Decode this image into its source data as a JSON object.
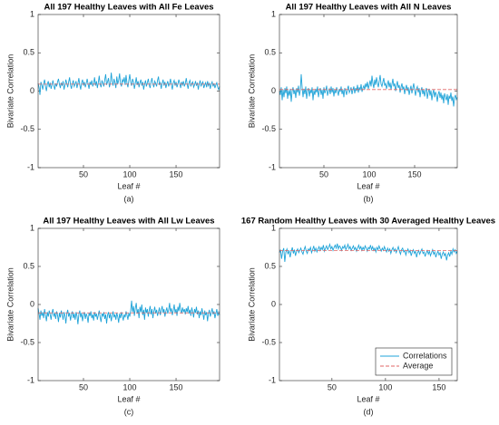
{
  "chart_data": [
    {
      "type": "line",
      "title": "All 197 Healthy Leaves with All Fe Leaves",
      "xlabel": "Leaf #",
      "ylabel": "Bivariate Correlation",
      "caption": "(a)",
      "xlim": [
        1,
        197
      ],
      "xticks": [
        50,
        100,
        150
      ],
      "ylim": [
        -1,
        1
      ],
      "yticks": [
        -1,
        -0.5,
        0,
        0.5,
        1
      ],
      "series": [
        {
          "color": "#1fa3d8",
          "values": [
            0.1,
            0.05,
            -0.05,
            0.12,
            0.08,
            0.02,
            0.1,
            0.15,
            0.06,
            0.0,
            0.09,
            0.13,
            0.05,
            0.11,
            0.03,
            0.08,
            0.14,
            0.07,
            0.02,
            0.1,
            0.06,
            0.12,
            0.16,
            0.09,
            0.04,
            0.11,
            0.07,
            0.13,
            0.02,
            0.08,
            0.15,
            0.1,
            0.05,
            0.12,
            0.18,
            0.08,
            0.03,
            0.1,
            0.14,
            0.06,
            0.09,
            0.13,
            0.04,
            0.1,
            0.17,
            0.08,
            0.02,
            0.11,
            0.15,
            0.07,
            0.12,
            0.05,
            0.1,
            0.16,
            0.09,
            0.03,
            0.12,
            0.08,
            0.14,
            0.06,
            0.1,
            0.18,
            0.07,
            0.13,
            0.04,
            0.11,
            0.2,
            0.09,
            0.05,
            0.14,
            0.1,
            0.06,
            0.15,
            0.22,
            0.08,
            0.12,
            0.17,
            0.05,
            0.1,
            0.24,
            0.13,
            0.07,
            0.16,
            0.11,
            0.04,
            0.19,
            0.09,
            0.14,
            0.23,
            0.1,
            0.06,
            0.15,
            0.12,
            0.18,
            0.08,
            0.21,
            0.1,
            0.05,
            0.14,
            0.22,
            0.11,
            0.07,
            0.16,
            0.12,
            0.03,
            0.1,
            0.18,
            0.08,
            0.13,
            0.05,
            0.11,
            0.15,
            0.07,
            0.12,
            0.02,
            0.09,
            0.14,
            0.06,
            0.11,
            0.16,
            0.08,
            0.04,
            0.12,
            0.17,
            0.09,
            0.05,
            0.13,
            0.1,
            0.06,
            0.14,
            0.19,
            0.08,
            0.11,
            0.03,
            0.1,
            0.15,
            0.07,
            0.12,
            0.04,
            0.09,
            0.13,
            0.06,
            0.1,
            0.16,
            0.08,
            0.02,
            0.11,
            0.14,
            0.07,
            0.12,
            0.05,
            0.09,
            0.15,
            0.1,
            0.04,
            0.12,
            0.08,
            0.13,
            0.06,
            0.1,
            0.17,
            0.09,
            0.03,
            0.11,
            0.14,
            0.06,
            0.1,
            0.12,
            0.05,
            0.08,
            0.13,
            0.07,
            0.11,
            0.02,
            0.09,
            0.14,
            0.06,
            0.1,
            0.12,
            0.04,
            0.08,
            0.11,
            0.05,
            0.13,
            0.07,
            0.1,
            0.03,
            0.09,
            0.12,
            0.06,
            0.1,
            0.04,
            0.08,
            0.11,
            0.05,
            0.02,
            0.06
          ]
        },
        {
          "color": "#e06666",
          "dash": true,
          "x": [
            1,
            197
          ],
          "values": [
            0.09,
            0.09
          ]
        }
      ]
    },
    {
      "type": "line",
      "title": "All 197 Healthy Leaves with All N Leaves",
      "xlabel": "Leaf #",
      "ylabel": "Bivariate Correlation",
      "caption": "(b)",
      "xlim": [
        1,
        197
      ],
      "xticks": [
        50,
        100,
        150
      ],
      "ylim": [
        -1,
        1
      ],
      "yticks": [
        -1,
        -0.5,
        0,
        0.5,
        1
      ],
      "series": [
        {
          "color": "#1fa3d8",
          "values": [
            0.0,
            -0.05,
            0.05,
            -0.12,
            0.02,
            -0.08,
            0.04,
            -0.03,
            0.06,
            -0.1,
            0.01,
            -0.06,
            0.03,
            -0.14,
            0.0,
            0.05,
            -0.04,
            0.02,
            -0.09,
            0.04,
            -0.02,
            0.07,
            -0.06,
            0.01,
            0.22,
            0.05,
            -0.08,
            0.03,
            -0.04,
            0.06,
            -0.1,
            0.0,
            0.04,
            -0.07,
            0.02,
            -0.03,
            0.05,
            -0.12,
            0.01,
            -0.05,
            0.03,
            -0.02,
            0.06,
            -0.08,
            0.0,
            0.04,
            -0.05,
            0.02,
            -0.1,
            0.05,
            -0.03,
            0.01,
            0.07,
            -0.06,
            0.0,
            0.03,
            -0.04,
            0.06,
            -0.02,
            0.04,
            -0.07,
            0.02,
            -0.03,
            0.05,
            0.0,
            -0.06,
            0.03,
            -0.01,
            0.06,
            -0.04,
            0.02,
            -0.08,
            0.04,
            0.0,
            -0.05,
            0.03,
            0.07,
            -0.02,
            0.01,
            0.05,
            -0.04,
            0.02,
            0.06,
            -0.03,
            0.04,
            0.0,
            0.08,
            -0.02,
            0.05,
            0.01,
            0.09,
            -0.01,
            0.04,
            0.07,
            0.02,
            0.1,
            0.05,
            0.12,
            0.03,
            0.08,
            0.14,
            0.06,
            0.2,
            0.1,
            0.04,
            0.15,
            0.08,
            0.18,
            0.11,
            0.05,
            0.13,
            0.21,
            0.09,
            0.06,
            0.12,
            0.17,
            0.07,
            0.1,
            0.03,
            0.08,
            0.14,
            0.05,
            0.11,
            0.02,
            0.09,
            0.16,
            0.06,
            0.1,
            0.0,
            0.07,
            0.13,
            0.04,
            0.08,
            -0.02,
            0.05,
            0.1,
            0.02,
            0.06,
            -0.04,
            0.03,
            0.08,
            0.0,
            0.05,
            -0.05,
            0.02,
            0.07,
            -0.03,
            0.04,
            0.1,
            0.01,
            -0.06,
            0.03,
            0.06,
            -0.02,
            0.04,
            -0.08,
            0.01,
            0.05,
            -0.04,
            0.02,
            -0.07,
            0.0,
            0.04,
            -0.1,
            -0.02,
            0.03,
            -0.06,
            0.01,
            -0.12,
            -0.03,
            0.02,
            -0.08,
            -0.01,
            -0.05,
            -0.14,
            -0.04,
            0.0,
            -0.09,
            -0.02,
            -0.11,
            -0.05,
            -0.16,
            -0.03,
            -0.08,
            -0.12,
            -0.04,
            -0.18,
            -0.06,
            -0.1,
            -0.02,
            -0.13,
            -0.07,
            -0.2,
            -0.09,
            -0.05,
            -0.11,
            -0.08
          ]
        },
        {
          "color": "#e06666",
          "dash": true,
          "x": [
            1,
            197
          ],
          "values": [
            0.02,
            0.02
          ]
        }
      ]
    },
    {
      "type": "line",
      "title": "All 197 Healthy Leaves with All Lw Leaves",
      "xlabel": "Leaf #",
      "ylabel": "Bivariate Correlation",
      "caption": "(c)",
      "xlim": [
        1,
        197
      ],
      "xticks": [
        50,
        100,
        150
      ],
      "ylim": [
        -1,
        1
      ],
      "yticks": [
        -1,
        -0.5,
        0,
        0.5,
        1
      ],
      "series": [
        {
          "color": "#1fa3d8",
          "values": [
            -0.05,
            -0.12,
            -0.2,
            -0.08,
            -0.15,
            -0.1,
            -0.18,
            -0.06,
            -0.14,
            -0.22,
            -0.1,
            -0.16,
            -0.08,
            -0.13,
            -0.2,
            -0.11,
            -0.06,
            -0.15,
            -0.12,
            -0.19,
            -0.09,
            -0.14,
            -0.23,
            -0.11,
            -0.17,
            -0.08,
            -0.13,
            -0.2,
            -0.1,
            -0.15,
            -0.25,
            -0.12,
            -0.07,
            -0.16,
            -0.11,
            -0.21,
            -0.14,
            -0.09,
            -0.18,
            -0.12,
            -0.2,
            -0.1,
            -0.15,
            -0.26,
            -0.13,
            -0.08,
            -0.17,
            -0.11,
            -0.22,
            -0.14,
            -0.1,
            -0.19,
            -0.12,
            -0.16,
            -0.24,
            -0.11,
            -0.15,
            -0.09,
            -0.18,
            -0.13,
            -0.21,
            -0.1,
            -0.16,
            -0.12,
            -0.2,
            -0.14,
            -0.08,
            -0.17,
            -0.23,
            -0.12,
            -0.15,
            -0.1,
            -0.19,
            -0.13,
            -0.25,
            -0.14,
            -0.1,
            -0.18,
            -0.12,
            -0.22,
            -0.15,
            -0.09,
            -0.17,
            -0.13,
            -0.2,
            -0.11,
            -0.16,
            -0.24,
            -0.12,
            -0.18,
            -0.1,
            -0.15,
            -0.21,
            -0.13,
            -0.17,
            -0.09,
            -0.14,
            -0.2,
            -0.11,
            -0.16,
            -0.08,
            0.05,
            -0.1,
            -0.02,
            -0.15,
            -0.05,
            0.02,
            -0.12,
            -0.06,
            -0.18,
            -0.03,
            -0.1,
            0.0,
            -0.14,
            -0.07,
            -0.2,
            -0.04,
            -0.11,
            -0.06,
            -0.16,
            -0.08,
            -0.02,
            -0.13,
            -0.06,
            -0.18,
            -0.09,
            -0.03,
            -0.12,
            -0.07,
            -0.15,
            -0.1,
            -0.04,
            -0.14,
            -0.08,
            -0.02,
            -0.11,
            -0.06,
            -0.16,
            -0.09,
            -0.04,
            -0.12,
            -0.07,
            0.02,
            -0.1,
            -0.05,
            -0.14,
            -0.08,
            0.0,
            -0.11,
            -0.06,
            -0.15,
            -0.03,
            -0.09,
            0.02,
            -0.07,
            -0.12,
            -0.04,
            -0.1,
            -0.06,
            -0.13,
            -0.05,
            -0.1,
            -0.02,
            -0.12,
            -0.07,
            -0.15,
            -0.04,
            -0.1,
            -0.17,
            -0.06,
            -0.11,
            -0.03,
            -0.13,
            -0.08,
            -0.18,
            -0.09,
            -0.14,
            -0.05,
            -0.12,
            -0.2,
            -0.08,
            -0.14,
            -0.1,
            -0.22,
            -0.12,
            -0.07,
            -0.16,
            -0.11,
            -0.05,
            -0.13,
            -0.09,
            -0.18,
            -0.12,
            -0.06,
            -0.15,
            -0.1,
            -0.14
          ]
        },
        {
          "color": "#e06666",
          "dash": true,
          "x": [
            1,
            197
          ],
          "values": [
            -0.11,
            -0.11
          ]
        }
      ]
    },
    {
      "type": "line",
      "title": "167 Random Healthy Leaves with 30 Averaged Healthy Leaves",
      "xlabel": "Leaf #",
      "ylabel": "Bivariate Correlation",
      "caption": "(d)",
      "xlim": [
        1,
        167
      ],
      "xticks": [
        50,
        100,
        150
      ],
      "ylim": [
        -1,
        1
      ],
      "yticks": [
        -1,
        -0.5,
        0,
        0.5,
        1
      ],
      "legend": "bottom-right",
      "series": [
        {
          "name": "Correlations",
          "color": "#1fa3d8",
          "values": [
            0.68,
            0.72,
            0.6,
            0.7,
            0.74,
            0.56,
            0.69,
            0.73,
            0.66,
            0.71,
            0.62,
            0.7,
            0.75,
            0.67,
            0.72,
            0.64,
            0.7,
            0.73,
            0.68,
            0.71,
            0.74,
            0.69,
            0.66,
            0.72,
            0.76,
            0.7,
            0.67,
            0.73,
            0.71,
            0.75,
            0.68,
            0.72,
            0.77,
            0.7,
            0.74,
            0.69,
            0.73,
            0.76,
            0.71,
            0.75,
            0.72,
            0.78,
            0.7,
            0.74,
            0.77,
            0.72,
            0.75,
            0.79,
            0.73,
            0.76,
            0.71,
            0.75,
            0.78,
            0.74,
            0.8,
            0.73,
            0.77,
            0.75,
            0.71,
            0.76,
            0.74,
            0.78,
            0.72,
            0.75,
            0.79,
            0.73,
            0.76,
            0.71,
            0.74,
            0.77,
            0.72,
            0.75,
            0.7,
            0.74,
            0.78,
            0.73,
            0.76,
            0.71,
            0.75,
            0.72,
            0.77,
            0.74,
            0.7,
            0.75,
            0.73,
            0.78,
            0.72,
            0.76,
            0.71,
            0.74,
            0.69,
            0.75,
            0.72,
            0.77,
            0.73,
            0.7,
            0.74,
            0.71,
            0.76,
            0.72,
            0.69,
            0.74,
            0.7,
            0.73,
            0.67,
            0.72,
            0.75,
            0.7,
            0.73,
            0.68,
            0.72,
            0.76,
            0.7,
            0.66,
            0.72,
            0.74,
            0.69,
            0.71,
            0.65,
            0.7,
            0.73,
            0.68,
            0.71,
            0.64,
            0.69,
            0.72,
            0.67,
            0.7,
            0.62,
            0.68,
            0.71,
            0.66,
            0.7,
            0.73,
            0.67,
            0.69,
            0.63,
            0.68,
            0.71,
            0.66,
            0.7,
            0.64,
            0.68,
            0.72,
            0.66,
            0.69,
            0.62,
            0.67,
            0.7,
            0.65,
            0.68,
            0.6,
            0.66,
            0.69,
            0.64,
            0.67,
            0.58,
            0.65,
            0.68,
            0.63,
            0.7,
            0.66,
            0.73,
            0.69,
            0.72,
            0.67,
            0.7
          ]
        },
        {
          "name": "Average",
          "color": "#e06666",
          "dash": true,
          "x": [
            1,
            167
          ],
          "values": [
            0.71,
            0.71
          ]
        }
      ]
    }
  ]
}
